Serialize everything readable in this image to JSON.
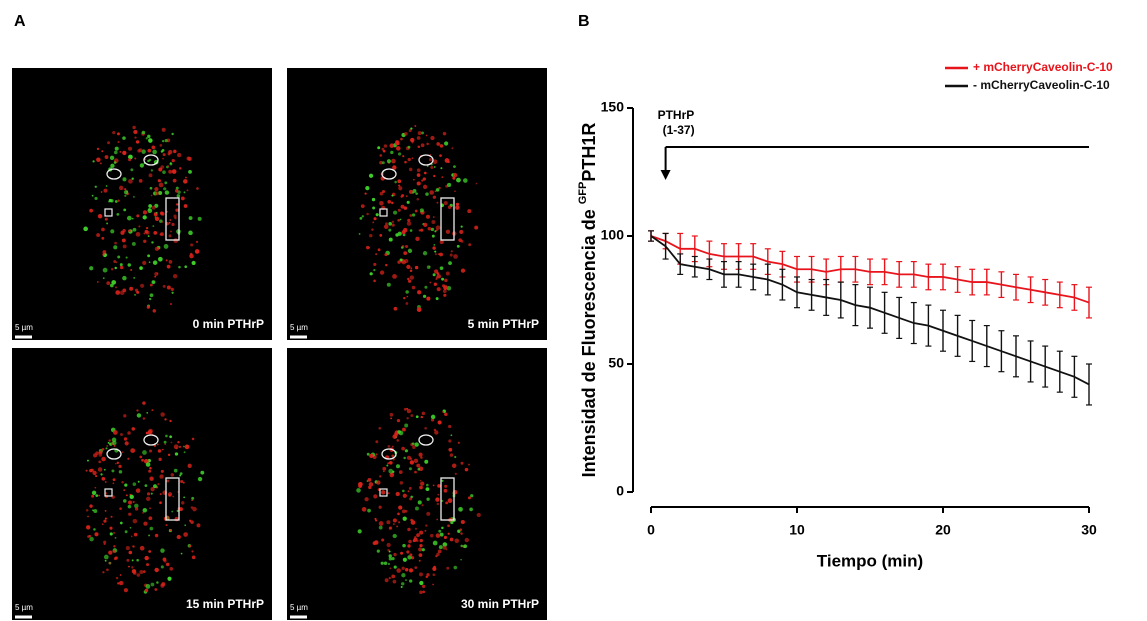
{
  "panel_a": {
    "label": "A",
    "images": [
      {
        "caption": "0 min PTHrP",
        "scale": "5 µm"
      },
      {
        "caption": "5 min PTHrP",
        "scale": "5 µm"
      },
      {
        "caption": "15 min PTHrP",
        "scale": "5 µm"
      },
      {
        "caption": "30 min PTHrP",
        "scale": "5 µm"
      }
    ]
  },
  "chart_data": {
    "type": "line",
    "panel_label": "B",
    "ylabel": [
      "Intensidad de Fluorescencia de ",
      "GFP",
      "PTH1R"
    ],
    "xlabel": "Tiempo (min)",
    "treatment": {
      "label": [
        "PTHrP",
        "(1-37)"
      ],
      "x": 1
    },
    "x": [
      0,
      1,
      2,
      3,
      4,
      5,
      6,
      7,
      8,
      9,
      10,
      11,
      12,
      13,
      14,
      15,
      16,
      17,
      18,
      19,
      20,
      21,
      22,
      23,
      24,
      25,
      26,
      27,
      28,
      29,
      30
    ],
    "series": [
      {
        "name": "+ mCherryCaveolin-C-10",
        "color": "#e8141c",
        "values": [
          100,
          98,
          95,
          95,
          93,
          92,
          92,
          92,
          90,
          89,
          87,
          87,
          86,
          87,
          87,
          86,
          86,
          85,
          85,
          84,
          84,
          83,
          82,
          82,
          81,
          80,
          79,
          78,
          77,
          76,
          74
        ],
        "errors": [
          2,
          3,
          6,
          5,
          5,
          5,
          5,
          5,
          5,
          5,
          5,
          5,
          5,
          5,
          5,
          5,
          5,
          5,
          5,
          5,
          5,
          5,
          5,
          5,
          5,
          5,
          5,
          5,
          5,
          5,
          6
        ]
      },
      {
        "name": "- mCherryCaveolin-C-10",
        "color": "#111111",
        "values": [
          100,
          96,
          89,
          88,
          87,
          85,
          85,
          84,
          83,
          81,
          78,
          77,
          76,
          75,
          73,
          72,
          70,
          68,
          66,
          65,
          63,
          61,
          59,
          57,
          55,
          53,
          51,
          49,
          47,
          45,
          42
        ],
        "errors": [
          2,
          5,
          4,
          4,
          4,
          5,
          5,
          5,
          6,
          6,
          6,
          6,
          7,
          7,
          8,
          8,
          8,
          8,
          8,
          8,
          8,
          8,
          8,
          8,
          8,
          8,
          8,
          8,
          8,
          8,
          8
        ]
      }
    ],
    "xlim": [
      0,
      30
    ],
    "xticks": [
      0,
      10,
      20,
      30
    ],
    "ylim": [
      0,
      150
    ],
    "yticks": [
      0,
      50,
      100,
      150
    ],
    "legend": "top-right"
  }
}
